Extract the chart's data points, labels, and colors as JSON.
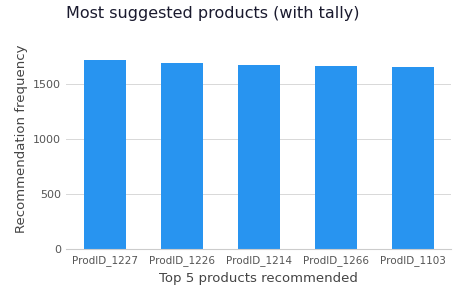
{
  "categories": [
    "ProdID_1227",
    "ProdID_1226",
    "ProdID_1214",
    "ProdID_1266",
    "ProdID_1103"
  ],
  "values": [
    1720,
    1690,
    1670,
    1660,
    1650
  ],
  "bar_color": "#2894F0",
  "title": "Most suggested products (with tally)",
  "xlabel": "Top 5 products recommended",
  "ylabel": "Recommendation frequency",
  "ylim": [
    0,
    2000
  ],
  "yticks": [
    0,
    500,
    1000,
    1500
  ],
  "title_fontsize": 11.5,
  "label_fontsize": 9.5,
  "tick_fontsize": 8,
  "xtick_fontsize": 7.5,
  "background_color": "#ffffff",
  "grid_color": "#d8d8d8",
  "title_color": "#1a1a2e",
  "axis_label_color": "#444444",
  "tick_label_color": "#555555"
}
